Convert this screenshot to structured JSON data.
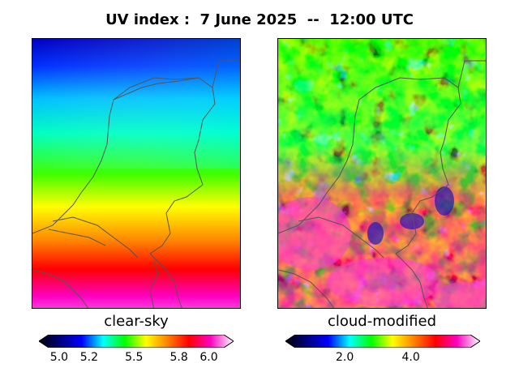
{
  "title": "UV index :  7 June 2025  --  12:00 UTC",
  "panels": [
    {
      "label": "clear-sky",
      "colorbar": {
        "min": 4.93,
        "max": 6.1,
        "ticks": [
          "5.0",
          "5.2",
          "5.5",
          "5.8",
          "6.0"
        ],
        "tick_values": [
          5.0,
          5.2,
          5.5,
          5.8,
          6.0
        ],
        "extend": "both"
      }
    },
    {
      "label": "cloud-modified",
      "colorbar": {
        "min": 0.5,
        "max": 5.8,
        "ticks": [
          "2.0",
          "4.0"
        ],
        "tick_values": [
          2.0,
          4.0
        ],
        "extend": "both"
      }
    }
  ],
  "colormap": [
    "#000000",
    "#000080",
    "#0000ff",
    "#00ffff",
    "#00ff00",
    "#ffff00",
    "#ff8000",
    "#ff0000",
    "#ff00c0",
    "#ffffff"
  ],
  "coastline_color": "#555555"
}
